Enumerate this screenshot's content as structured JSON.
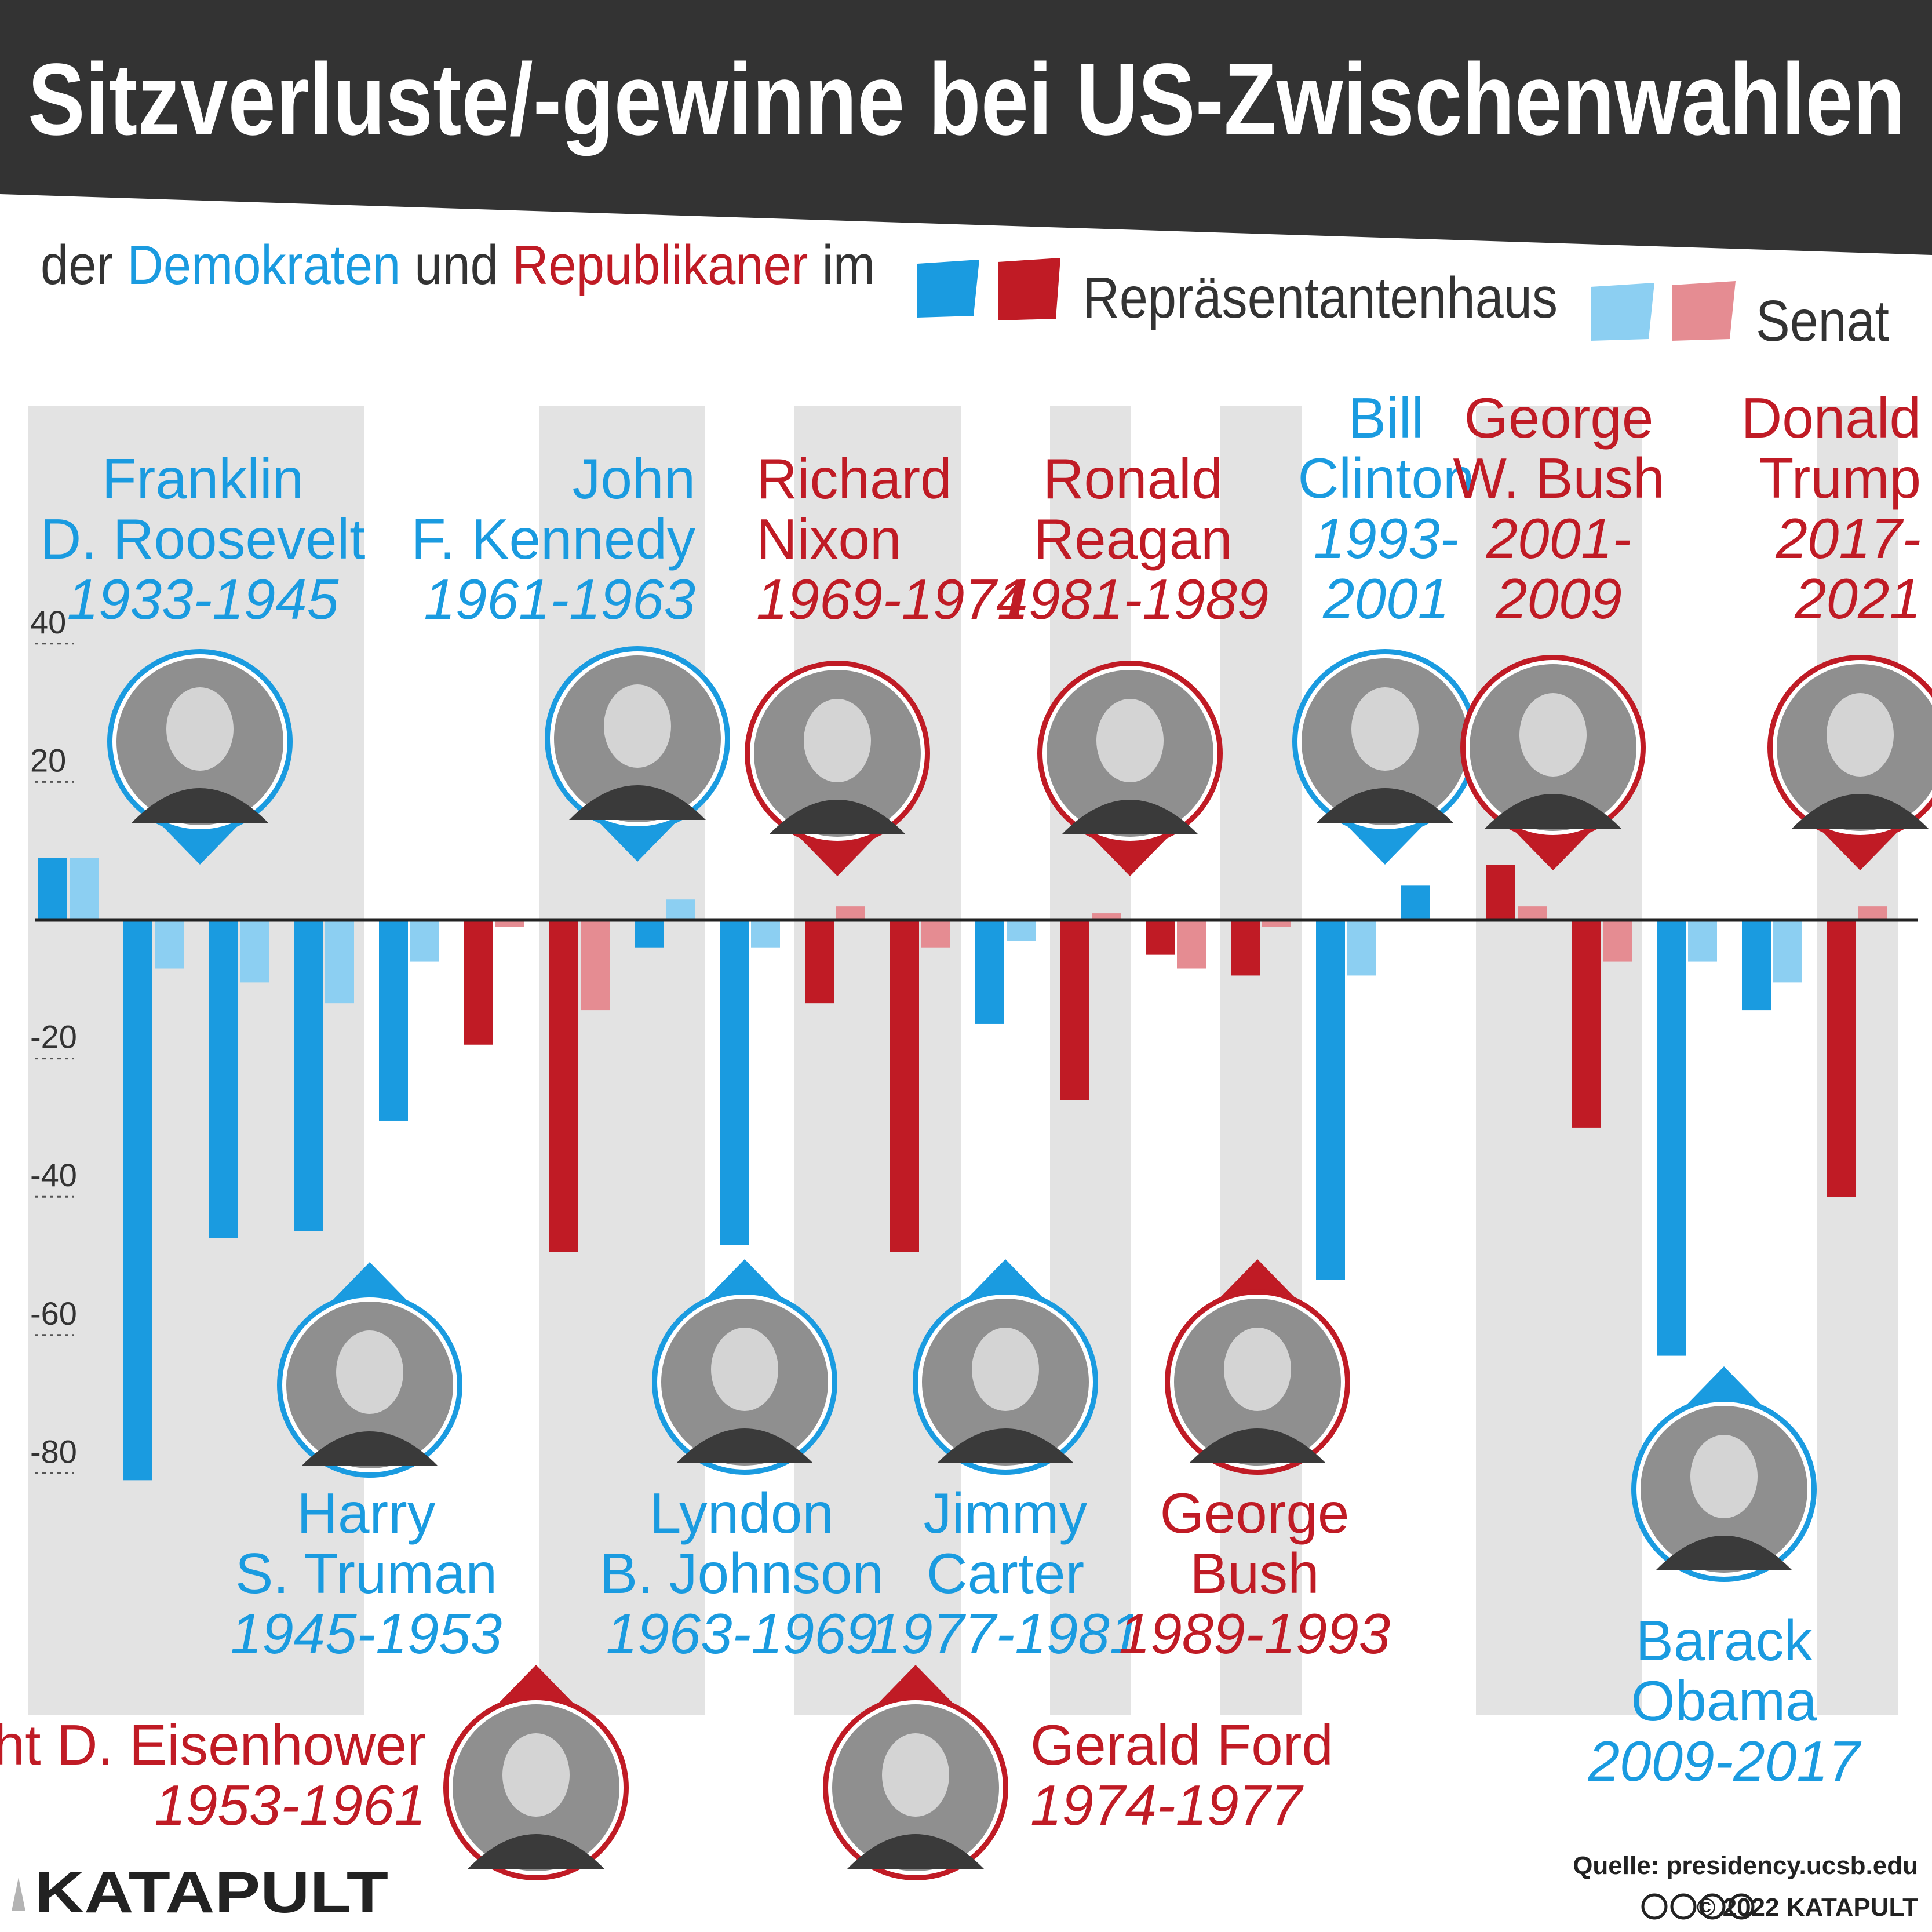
{
  "title": "Sitzverluste/-gewinne bei US-Zwischenwahlen",
  "subtitle": {
    "prefix": "der",
    "dem": "Demokraten",
    "mid": "und",
    "rep": "Republikaner",
    "suffix": "im"
  },
  "legend": {
    "house": "Repräsentantenhaus",
    "senate": "Senat"
  },
  "colors": {
    "dem_house": "#1a9be0",
    "dem_senate": "#8ccff2",
    "rep_house": "#c01b25",
    "rep_senate": "#e58c92",
    "band": "#e3e3e3",
    "banner": "#333333"
  },
  "source": "Quelle: presidency.ucsb.edu",
  "copyright": "© 2022 KATAPULT",
  "logo": "KATAPULT",
  "chart_data": {
    "type": "bar",
    "ylim": [
      -90,
      50
    ],
    "yticks": [
      40,
      20,
      -20,
      -40,
      -60,
      -80
    ],
    "tick_labels": [
      "40",
      "20",
      "-20",
      "-40",
      "-60",
      "-80"
    ],
    "series": [
      {
        "name": "Repräsentantenhaus",
        "values": [
          9,
          -81,
          -46,
          -45,
          -29,
          -18,
          -48,
          -4,
          -47,
          -12,
          -48,
          -15,
          -26,
          -5,
          -8,
          -52,
          5,
          8,
          -30,
          -63,
          -13,
          -40
        ]
      },
      {
        "name": "Senat",
        "values": [
          9,
          -7,
          -9,
          -12,
          -6,
          -1,
          -13,
          3,
          -4,
          2,
          -4,
          -3,
          1,
          -7,
          -1,
          -8,
          0,
          2,
          -6,
          -6,
          -9,
          2
        ]
      }
    ],
    "party": [
      "D",
      "D",
      "D",
      "D",
      "D",
      "R",
      "R",
      "D",
      "D",
      "R",
      "R",
      "D",
      "R",
      "R",
      "R",
      "D",
      "D",
      "R",
      "R",
      "D",
      "D",
      "R"
    ],
    "presidents": [
      {
        "name": [
          "Franklin",
          "D. Roosevelt"
        ],
        "years": "1933-1945",
        "party": "D"
      },
      {
        "name": [
          "Harry",
          "S. Truman"
        ],
        "years": "1945-1953",
        "party": "D"
      },
      {
        "name": [
          "Dwight D. Eisenhower"
        ],
        "years": "1953-1961",
        "party": "R"
      },
      {
        "name": [
          "John",
          "F. Kennedy"
        ],
        "years": "1961-1963",
        "party": "D"
      },
      {
        "name": [
          "Lyndon",
          "B. Johnson"
        ],
        "years": "1963-1969",
        "party": "D"
      },
      {
        "name": [
          "Richard",
          "Nixon"
        ],
        "years": "1969-1974",
        "party": "R"
      },
      {
        "name": [
          "Gerald Ford"
        ],
        "years": "1974-1977",
        "party": "R"
      },
      {
        "name": [
          "Jimmy",
          "Carter"
        ],
        "years": "1977-1981",
        "party": "D"
      },
      {
        "name": [
          "Ronald",
          "Reagan"
        ],
        "years": "1981-1989",
        "party": "R"
      },
      {
        "name": [
          "George",
          "Bush"
        ],
        "years": "1989-1993",
        "party": "R"
      },
      {
        "name": [
          "Bill",
          "Clinton"
        ],
        "years": [
          "1993-",
          "2001"
        ],
        "party": "D"
      },
      {
        "name": [
          "George",
          "W. Bush"
        ],
        "years": [
          "2001-",
          "2009"
        ],
        "party": "R"
      },
      {
        "name": [
          "Barack",
          "Obama"
        ],
        "years": "2009-2017",
        "party": "D"
      },
      {
        "name": [
          "Donald",
          "Trump"
        ],
        "years": [
          "2017-",
          "2021"
        ],
        "party": "R"
      }
    ]
  }
}
